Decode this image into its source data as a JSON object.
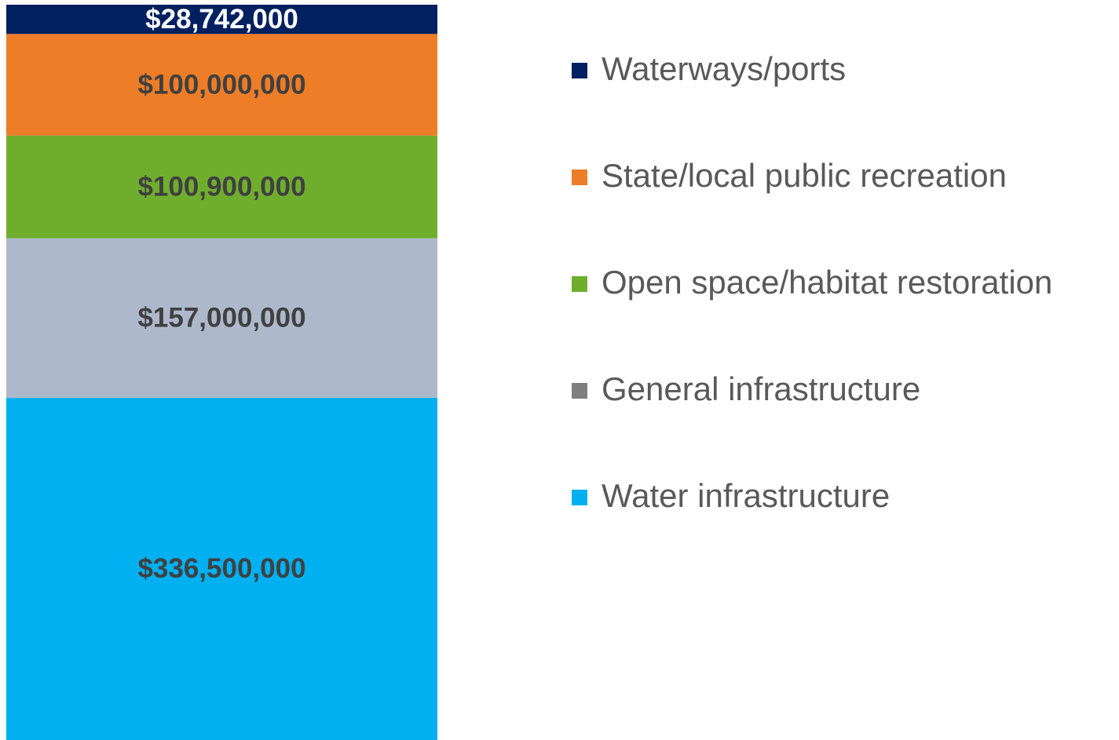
{
  "chart_data": {
    "type": "stacked-bar",
    "categories": [
      null
    ],
    "legend": "right",
    "series": [
      {
        "name": "Waterways/ports",
        "color": "#002060",
        "label_color": "#ffffff",
        "values": [
          28742000
        ],
        "value_labels": [
          "$28,742,000"
        ]
      },
      {
        "name": "State/local public recreation",
        "color": "#ed7d27",
        "label_color": "#404040",
        "values": [
          100000000
        ],
        "value_labels": [
          "$100,000,000"
        ]
      },
      {
        "name": "Open space/habitat restoration",
        "color": "#6fae2d",
        "label_color": "#404040",
        "values": [
          100900000
        ],
        "value_labels": [
          "$100,900,000"
        ]
      },
      {
        "name": "General infrastructure",
        "color": "#adb9ca",
        "legend_color": "#7f7f7f",
        "label_color": "#404040",
        "values": [
          157000000
        ],
        "value_labels": [
          "$157,000,000"
        ]
      },
      {
        "name": "Water infrastructure",
        "color": "#00b0f0",
        "label_color": "#404040",
        "values": [
          336500000
        ],
        "value_labels": [
          "$336,500,000"
        ]
      }
    ]
  }
}
